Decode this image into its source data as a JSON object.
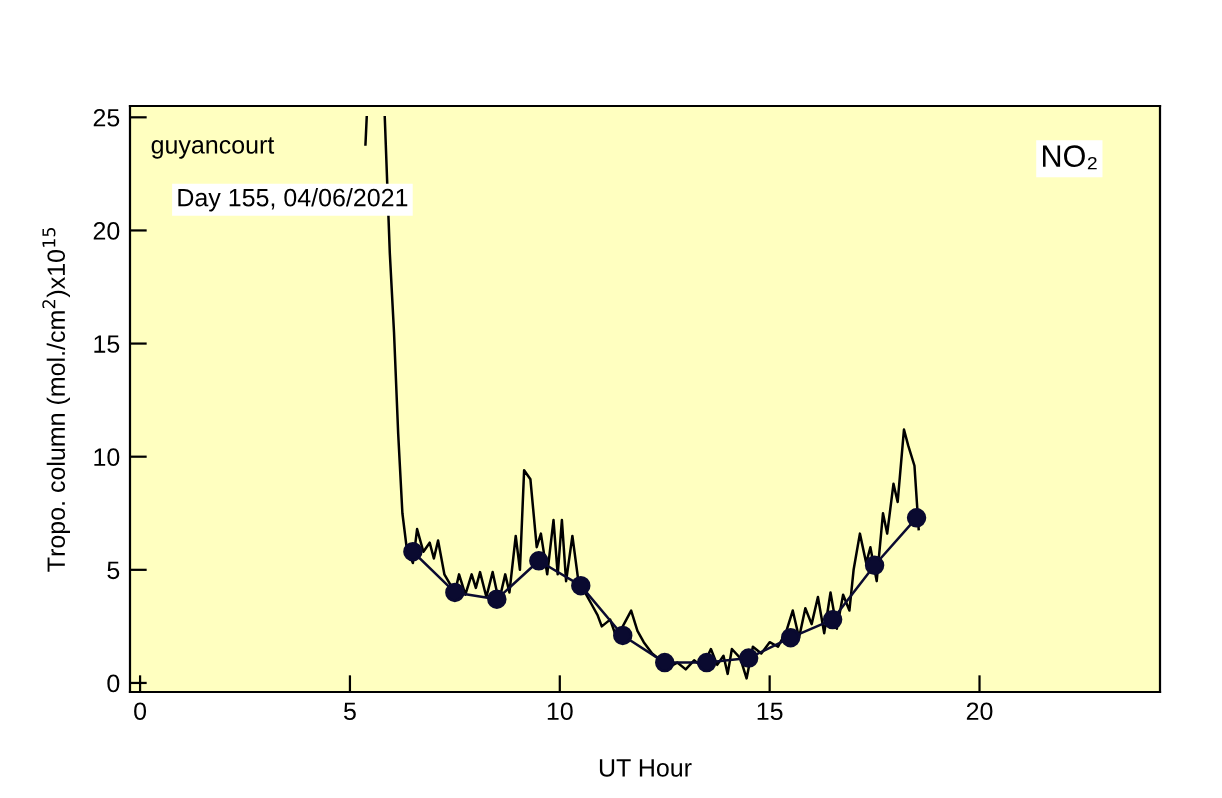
{
  "chart_data": {
    "type": "line",
    "xlabel": "UT Hour",
    "ylabel": "Tropo. column (mol./cm$^{2}$)x10$^{15}$",
    "annotations": [
      "guyancourt",
      "Day 155, 04/06/2021",
      "NO₂"
    ],
    "xlim": [
      -0.24,
      24.3
    ],
    "ylim": [
      -0.4,
      25.5
    ],
    "xticks": [
      0,
      5,
      10,
      15,
      20
    ],
    "yticks": [
      0,
      5,
      10,
      15,
      20,
      25
    ],
    "grid": false,
    "legend": false,
    "series": [
      {
        "color": "#000000",
        "marker": "none",
        "x": [
          5.37,
          5.4,
          5.6,
          5.83,
          5.95,
          6.05,
          6.15,
          6.25,
          6.35,
          6.5,
          6.6,
          6.75,
          6.9,
          7.0,
          7.1,
          7.25,
          7.5,
          7.6,
          7.75,
          7.9,
          8.0,
          8.1,
          8.25,
          8.4,
          8.55,
          8.7,
          8.8,
          8.95,
          9.05,
          9.15,
          9.3,
          9.45,
          9.55,
          9.7,
          9.85,
          9.95,
          10.05,
          10.15,
          10.3,
          10.45,
          10.6,
          10.75,
          10.9,
          11.0,
          11.2,
          11.35,
          11.5,
          11.7,
          11.85,
          12.0,
          12.2,
          12.4,
          12.6,
          12.8,
          13.0,
          13.2,
          13.4,
          13.6,
          13.75,
          13.9,
          14.0,
          14.1,
          14.3,
          14.45,
          14.6,
          14.8,
          15.0,
          15.2,
          15.4,
          15.55,
          15.7,
          15.85,
          16.0,
          16.15,
          16.3,
          16.45,
          16.6,
          16.75,
          16.9,
          17.0,
          17.15,
          17.3,
          17.4,
          17.55,
          17.7,
          17.8,
          17.95,
          18.05,
          18.2,
          18.3,
          18.45,
          18.55
        ],
        "values": [
          23.8,
          25.0,
          null,
          25.0,
          19.0,
          15.5,
          11.0,
          7.5,
          6.0,
          5.3,
          6.8,
          5.8,
          6.2,
          5.5,
          6.3,
          4.8,
          4.0,
          4.8,
          3.9,
          4.8,
          4.2,
          4.9,
          3.8,
          4.9,
          3.6,
          4.8,
          4.0,
          6.5,
          5.0,
          9.4,
          9.0,
          6.0,
          6.6,
          4.8,
          7.2,
          4.8,
          7.2,
          4.5,
          6.5,
          4.4,
          4.0,
          3.5,
          3.0,
          2.5,
          2.8,
          2.0,
          2.5,
          3.2,
          2.3,
          1.8,
          1.3,
          1.0,
          0.7,
          0.9,
          0.6,
          1.0,
          0.7,
          1.5,
          0.8,
          1.2,
          0.4,
          1.5,
          1.1,
          0.2,
          1.6,
          1.3,
          1.8,
          1.6,
          2.3,
          3.2,
          2.0,
          3.3,
          2.6,
          3.8,
          2.2,
          4.0,
          2.4,
          3.9,
          3.2,
          5.0,
          6.6,
          5.3,
          6.0,
          4.5,
          7.5,
          6.6,
          8.8,
          8.0,
          11.2,
          10.5,
          9.6,
          6.8
        ]
      },
      {
        "color": "#0a0a30",
        "marker": "circle",
        "x": [
          6.5,
          7.5,
          8.5,
          9.5,
          10.5,
          11.5,
          12.5,
          13.5,
          14.5,
          15.5,
          16.5,
          17.5,
          18.5
        ],
        "values": [
          5.8,
          4.0,
          3.7,
          5.4,
          4.3,
          2.1,
          0.9,
          0.9,
          1.1,
          2.0,
          2.8,
          5.2,
          7.3
        ]
      }
    ]
  }
}
